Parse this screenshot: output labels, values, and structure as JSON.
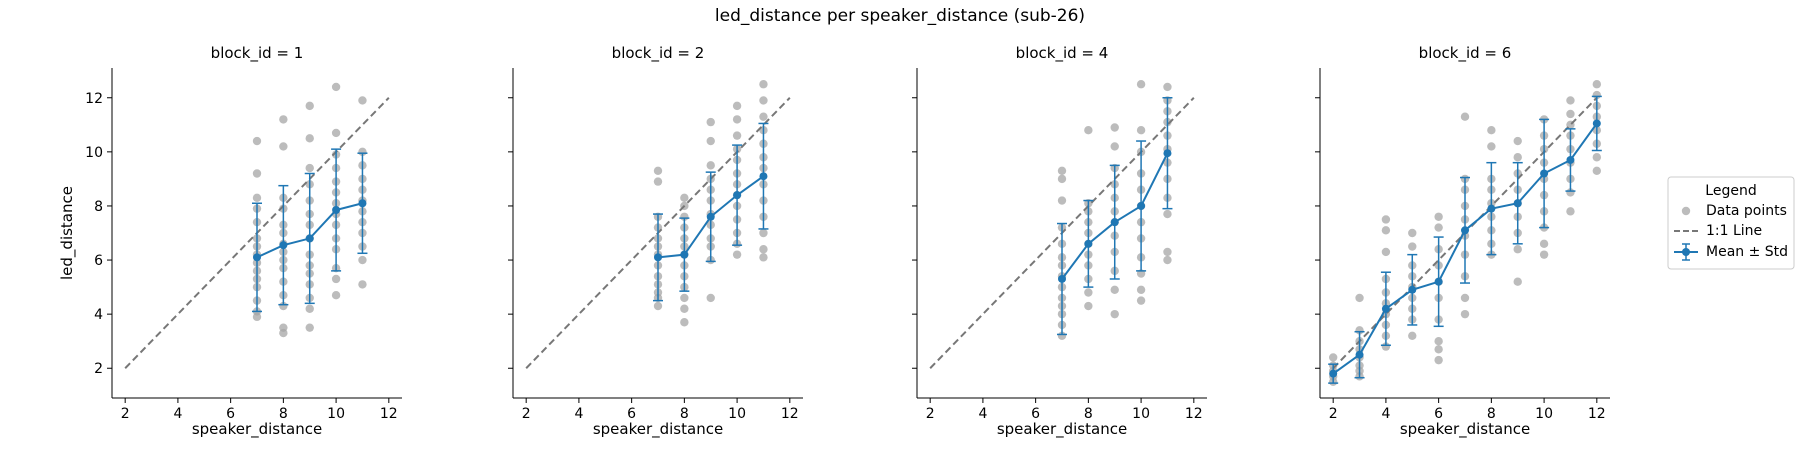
{
  "chart_data": {
    "type": "scatter",
    "title": "led_distance per speaker_distance (sub-26)",
    "xlabel": "speaker_distance",
    "ylabel": "led_distance",
    "xlim": [
      1.5,
      12.5
    ],
    "ylim": [
      0.9,
      13.1
    ],
    "xticks": [
      2,
      4,
      6,
      8,
      10,
      12
    ],
    "yticks": [
      2,
      4,
      6,
      8,
      10,
      12
    ],
    "xtick_labels": [
      "2",
      "4",
      "6",
      "8",
      "10",
      "12"
    ],
    "ytick_labels": [
      "2",
      "4",
      "6",
      "8",
      "10",
      "12"
    ],
    "identity_line": [
      2,
      12
    ],
    "legend": {
      "title": "Legend",
      "position": "right",
      "entries": [
        "Data points",
        "1:1 Line",
        "Mean ± Std"
      ]
    },
    "colors": {
      "points": "#a6a6a6",
      "mean": "#1f77b4",
      "identity": "#777777"
    },
    "panels": [
      {
        "title": "block_id = 1",
        "mean": [
          [
            7,
            6.1
          ],
          [
            8,
            6.55
          ],
          [
            9,
            6.8
          ],
          [
            10,
            7.85
          ],
          [
            11,
            8.1
          ]
        ],
        "std": [
          2.0,
          2.2,
          2.4,
          2.25,
          1.85
        ],
        "points": {
          "7": [
            3.9,
            4.1,
            4.5,
            5.0,
            5.3,
            5.6,
            5.9,
            6.2,
            6.5,
            6.8,
            7.4,
            7.9,
            8.3,
            9.2,
            10.4
          ],
          "8": [
            3.3,
            3.5,
            4.3,
            4.7,
            5.2,
            5.7,
            6.0,
            6.3,
            6.6,
            7.0,
            7.3,
            7.9,
            8.3,
            10.2,
            11.2
          ],
          "9": [
            3.5,
            4.2,
            4.6,
            5.1,
            5.5,
            5.8,
            6.2,
            6.8,
            7.3,
            7.7,
            8.2,
            8.8,
            9.4,
            10.5,
            11.7
          ],
          "10": [
            4.7,
            5.3,
            5.7,
            6.4,
            6.8,
            7.3,
            7.7,
            8.1,
            8.5,
            8.9,
            9.4,
            9.9,
            10.7,
            12.4
          ],
          "11": [
            5.1,
            6.0,
            6.5,
            7.0,
            7.4,
            7.8,
            8.2,
            8.6,
            9.0,
            9.5,
            10.0,
            11.9
          ]
        }
      },
      {
        "title": "block_id = 2",
        "mean": [
          [
            7,
            6.1
          ],
          [
            8,
            6.2
          ],
          [
            9,
            7.6
          ],
          [
            10,
            8.4
          ],
          [
            11,
            9.1
          ]
        ],
        "std": [
          1.6,
          1.35,
          1.65,
          1.85,
          1.95
        ],
        "points": {
          "7": [
            4.3,
            4.6,
            4.8,
            5.1,
            5.4,
            5.8,
            6.2,
            6.5,
            6.8,
            7.2,
            7.6,
            8.9,
            9.3
          ],
          "8": [
            3.7,
            4.2,
            4.6,
            5.0,
            5.4,
            5.8,
            6.2,
            6.5,
            6.8,
            7.2,
            7.6,
            8.0,
            8.3
          ],
          "9": [
            4.6,
            6.0,
            6.5,
            6.8,
            7.3,
            7.7,
            8.2,
            8.6,
            9.0,
            9.5,
            10.4,
            11.1
          ],
          "10": [
            6.2,
            6.6,
            7.0,
            7.5,
            8.0,
            8.4,
            8.8,
            9.2,
            9.7,
            10.1,
            10.6,
            11.2,
            11.7
          ],
          "11": [
            6.1,
            6.4,
            7.0,
            7.6,
            8.2,
            8.8,
            9.4,
            9.8,
            10.3,
            10.8,
            11.3,
            11.9,
            12.5
          ]
        }
      },
      {
        "title": "block_id = 4",
        "mean": [
          [
            7,
            5.3
          ],
          [
            8,
            6.6
          ],
          [
            9,
            7.4
          ],
          [
            10,
            8.0
          ],
          [
            11,
            9.95
          ]
        ],
        "std": [
          2.05,
          1.6,
          2.1,
          2.4,
          2.05
        ],
        "points": {
          "7": [
            3.2,
            3.6,
            4.0,
            4.3,
            4.6,
            5.0,
            5.4,
            5.8,
            6.1,
            6.6,
            7.2,
            8.2,
            9.0,
            9.3
          ],
          "8": [
            4.3,
            4.8,
            5.3,
            5.8,
            6.2,
            6.6,
            7.0,
            7.4,
            7.8,
            8.1,
            10.8
          ],
          "9": [
            4.0,
            4.9,
            5.6,
            6.3,
            6.9,
            7.4,
            7.8,
            8.3,
            8.8,
            9.4,
            10.2,
            10.9
          ],
          "10": [
            4.5,
            4.9,
            5.5,
            6.1,
            6.8,
            7.4,
            8.0,
            8.6,
            9.2,
            10.0,
            10.8,
            12.5
          ],
          "11": [
            6.0,
            6.3,
            7.7,
            8.3,
            9.0,
            9.6,
            10.1,
            10.6,
            11.1,
            11.5,
            11.9,
            12.4
          ]
        }
      },
      {
        "title": "block_id = 6",
        "mean": [
          [
            2,
            1.8
          ],
          [
            3,
            2.5
          ],
          [
            4,
            4.2
          ],
          [
            5,
            4.9
          ],
          [
            6,
            5.2
          ],
          [
            7,
            7.1
          ],
          [
            8,
            7.9
          ],
          [
            9,
            8.1
          ],
          [
            10,
            9.2
          ],
          [
            11,
            9.7
          ],
          [
            12,
            11.05
          ]
        ],
        "std": [
          0.35,
          0.85,
          1.35,
          1.3,
          1.65,
          1.95,
          1.7,
          1.5,
          2.0,
          1.15,
          1.0
        ],
        "points": {
          "2": [
            1.5,
            1.7,
            1.9,
            2.1,
            2.4
          ],
          "3": [
            1.7,
            1.9,
            2.1,
            2.4,
            2.7,
            3.0,
            3.4,
            4.6
          ],
          "4": [
            2.8,
            3.2,
            3.6,
            4.0,
            4.4,
            4.8,
            5.3,
            6.3,
            7.1,
            7.5
          ],
          "5": [
            3.2,
            3.8,
            4.2,
            4.6,
            5.0,
            5.4,
            5.8,
            6.5,
            7.0
          ],
          "6": [
            2.3,
            2.7,
            3.0,
            3.8,
            4.6,
            5.2,
            5.8,
            6.4,
            7.2,
            7.6
          ],
          "7": [
            4.0,
            4.6,
            5.4,
            6.2,
            6.9,
            7.5,
            8.0,
            8.6,
            9.0,
            11.3
          ],
          "8": [
            6.2,
            6.6,
            7.1,
            7.6,
            8.1,
            8.6,
            9.0,
            10.2,
            10.8
          ],
          "9": [
            5.2,
            6.4,
            7.0,
            7.6,
            8.1,
            8.6,
            9.2,
            9.8,
            10.4
          ],
          "10": [
            6.2,
            6.6,
            7.2,
            7.8,
            8.4,
            9.0,
            9.6,
            10.1,
            10.6,
            11.2
          ],
          "11": [
            7.8,
            8.5,
            9.0,
            9.6,
            10.1,
            10.6,
            11.0,
            11.4,
            11.9
          ],
          "12": [
            9.3,
            9.8,
            10.3,
            10.8,
            11.3,
            11.7,
            12.1,
            12.5
          ]
        }
      }
    ]
  }
}
